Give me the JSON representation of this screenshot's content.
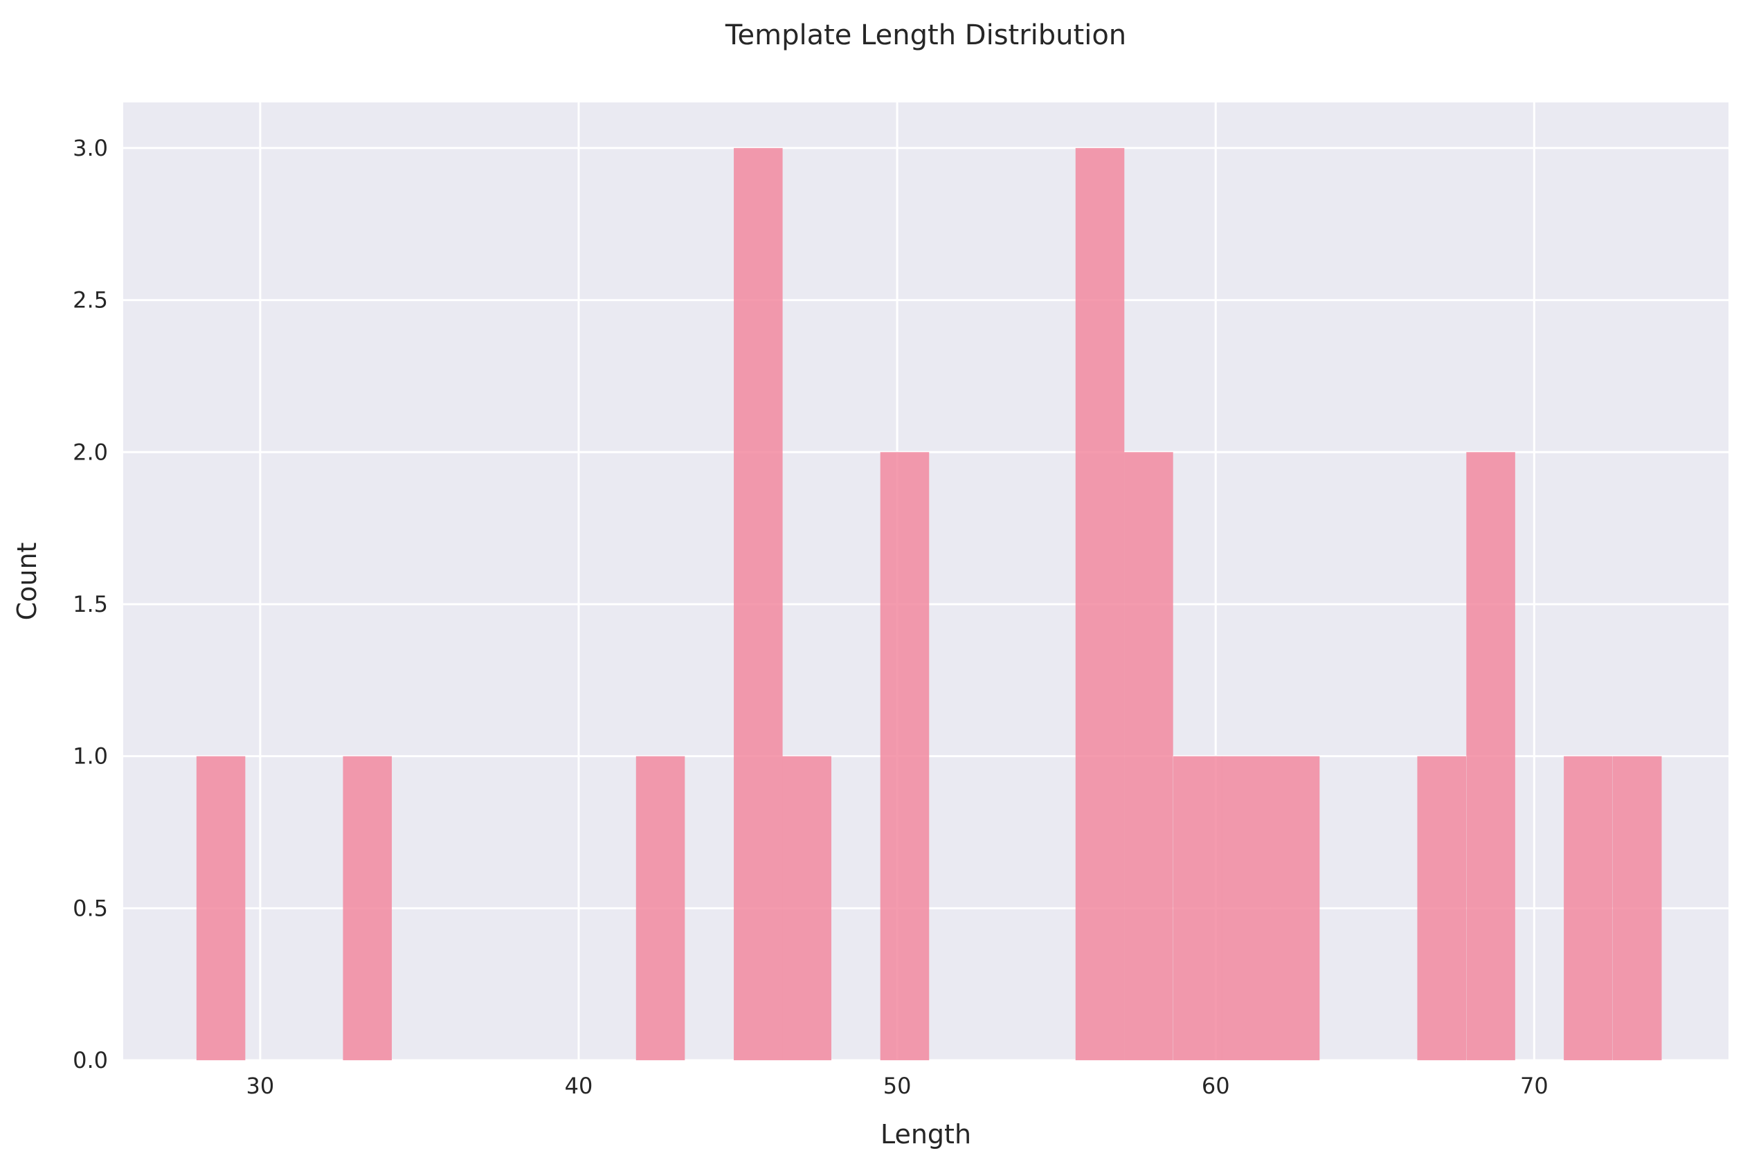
{
  "chart_data": {
    "type": "bar",
    "title": "Template Length Distribution",
    "xlabel": "Length",
    "ylabel": "Count",
    "xlim": [
      25.7,
      76.1
    ],
    "ylim": [
      0,
      3.15
    ],
    "xticks": [
      30,
      40,
      50,
      60,
      70
    ],
    "yticks": [
      0.0,
      0.5,
      1.0,
      1.5,
      2.0,
      2.5,
      3.0
    ],
    "bin_width": 1.533,
    "bins": [
      {
        "x0": 28.0,
        "count": 1
      },
      {
        "x0": 32.6,
        "count": 1
      },
      {
        "x0": 41.8,
        "count": 1
      },
      {
        "x0": 44.87,
        "count": 3
      },
      {
        "x0": 46.4,
        "count": 1
      },
      {
        "x0": 49.47,
        "count": 2
      },
      {
        "x0": 55.6,
        "count": 3
      },
      {
        "x0": 57.13,
        "count": 2
      },
      {
        "x0": 58.67,
        "count": 1
      },
      {
        "x0": 60.2,
        "count": 1
      },
      {
        "x0": 61.73,
        "count": 1
      },
      {
        "x0": 66.33,
        "count": 1
      },
      {
        "x0": 67.87,
        "count": 2
      },
      {
        "x0": 70.93,
        "count": 1
      },
      {
        "x0": 72.47,
        "count": 1
      }
    ],
    "grid": true,
    "background": "#eaeaf2",
    "bar_color": "#f28aa0"
  }
}
